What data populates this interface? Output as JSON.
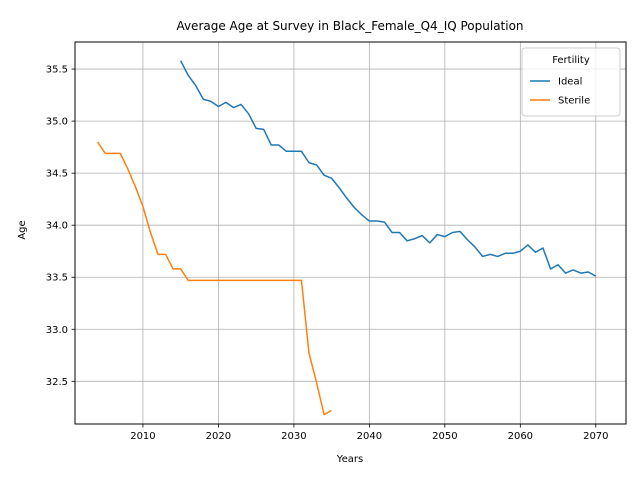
{
  "chart_data": {
    "type": "line",
    "title": "Average Age at Survey in Black_Female_Q4_IQ Population",
    "xlabel": "Years",
    "ylabel": "Age",
    "xlim": [
      2001,
      2074
    ],
    "ylim": [
      32.09,
      35.76
    ],
    "xticks": [
      2010,
      2020,
      2030,
      2040,
      2050,
      2060,
      2070
    ],
    "yticks": [
      32.5,
      33.0,
      33.5,
      34.0,
      34.5,
      35.0,
      35.5
    ],
    "xtick_labels": [
      "2010",
      "2020",
      "2030",
      "2040",
      "2050",
      "2060",
      "2070"
    ],
    "ytick_labels": [
      "32.5",
      "33.0",
      "33.5",
      "34.0",
      "34.5",
      "35.0",
      "35.5"
    ],
    "grid": true,
    "legend": {
      "title": "Fertility",
      "position": "top-right"
    },
    "series": [
      {
        "name": "Ideal",
        "color": "#1f77b4",
        "x": [
          2015,
          2016,
          2017,
          2018,
          2019,
          2020,
          2021,
          2022,
          2023,
          2024,
          2025,
          2026,
          2027,
          2028,
          2029,
          2030,
          2031,
          2032,
          2033,
          2034,
          2035,
          2036,
          2037,
          2038,
          2039,
          2040,
          2041,
          2042,
          2043,
          2044,
          2045,
          2046,
          2047,
          2048,
          2049,
          2050,
          2051,
          2052,
          2053,
          2054,
          2055,
          2056,
          2057,
          2058,
          2059,
          2060,
          2061,
          2062,
          2063,
          2064,
          2065,
          2066,
          2067,
          2068,
          2069,
          2070
        ],
        "y": [
          35.58,
          35.44,
          35.34,
          35.21,
          35.19,
          35.14,
          35.18,
          35.13,
          35.16,
          35.07,
          34.93,
          34.92,
          34.77,
          34.77,
          34.71,
          34.71,
          34.71,
          34.6,
          34.58,
          34.48,
          34.45,
          34.36,
          34.26,
          34.17,
          34.1,
          34.04,
          34.04,
          34.03,
          33.93,
          33.93,
          33.85,
          33.87,
          33.9,
          33.83,
          33.91,
          33.89,
          33.93,
          33.94,
          33.86,
          33.79,
          33.7,
          33.72,
          33.7,
          33.73,
          33.73,
          33.75,
          33.81,
          33.74,
          33.78,
          33.58,
          33.62,
          33.54,
          33.57,
          33.54,
          33.55,
          33.51
        ]
      },
      {
        "name": "Sterile",
        "color": "#ff7f0e",
        "x": [
          2004,
          2005,
          2006,
          2007,
          2008,
          2009,
          2010,
          2011,
          2012,
          2013,
          2014,
          2015,
          2016,
          2017,
          2018,
          2019,
          2020,
          2021,
          2022,
          2023,
          2024,
          2025,
          2026,
          2027,
          2028,
          2029,
          2030,
          2031,
          2032,
          2033,
          2034,
          2035
        ],
        "y": [
          34.8,
          34.69,
          34.69,
          34.69,
          34.54,
          34.37,
          34.18,
          33.93,
          33.72,
          33.72,
          33.58,
          33.58,
          33.47,
          33.47,
          33.47,
          33.47,
          33.47,
          33.47,
          33.47,
          33.47,
          33.47,
          33.47,
          33.47,
          33.47,
          33.47,
          33.47,
          33.47,
          33.47,
          32.77,
          32.49,
          32.18,
          32.22
        ]
      }
    ]
  }
}
